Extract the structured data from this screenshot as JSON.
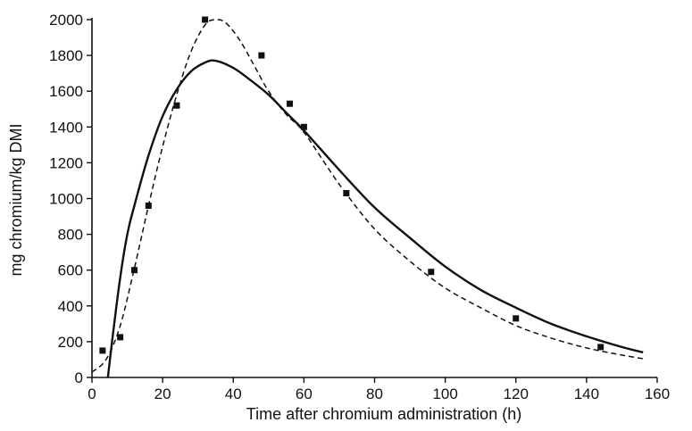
{
  "chart_data": {
    "type": "scatter",
    "title": "",
    "xlabel": "Time after chromium administration (h)",
    "ylabel": "mg chromium/kg DMI",
    "xlim": [
      0,
      160
    ],
    "ylim": [
      0,
      2000
    ],
    "x_ticks": [
      0,
      20,
      40,
      60,
      80,
      100,
      120,
      140,
      160
    ],
    "y_ticks": [
      0,
      200,
      400,
      600,
      800,
      1000,
      1200,
      1400,
      1600,
      1800,
      2000
    ],
    "grid": false,
    "legend": "none",
    "series": [
      {
        "style": "markers",
        "marker": "square",
        "color": "#111111",
        "x": [
          3,
          8,
          12,
          16,
          24,
          32,
          48,
          56,
          60,
          72,
          96,
          120,
          144
        ],
        "y": [
          150,
          225,
          600,
          960,
          1520,
          2000,
          1800,
          1530,
          1400,
          1030,
          590,
          330,
          170
        ]
      },
      {
        "style": "solid",
        "color": "#111111",
        "x": [
          4.5,
          6,
          8,
          10,
          12,
          16,
          20,
          24,
          28,
          32,
          35,
          40,
          45,
          50,
          55,
          60,
          70,
          80,
          90,
          100,
          110,
          120,
          130,
          140,
          150,
          156
        ],
        "y": [
          0,
          250,
          560,
          800,
          960,
          1240,
          1460,
          1610,
          1710,
          1760,
          1770,
          1730,
          1660,
          1580,
          1480,
          1380,
          1160,
          950,
          780,
          620,
          490,
          390,
          300,
          230,
          170,
          140
        ]
      },
      {
        "style": "dashed",
        "color": "#111111",
        "x": [
          0,
          4,
          8,
          12,
          16,
          20,
          24,
          28,
          32,
          35,
          38,
          42,
          46,
          50,
          55,
          60,
          70,
          80,
          90,
          100,
          110,
          120,
          130,
          140,
          150,
          156
        ],
        "y": [
          30,
          100,
          290,
          610,
          960,
          1290,
          1580,
          1820,
          1970,
          2000,
          1980,
          1880,
          1740,
          1600,
          1470,
          1370,
          1080,
          830,
          650,
          500,
          390,
          290,
          220,
          165,
          125,
          105
        ]
      }
    ]
  }
}
